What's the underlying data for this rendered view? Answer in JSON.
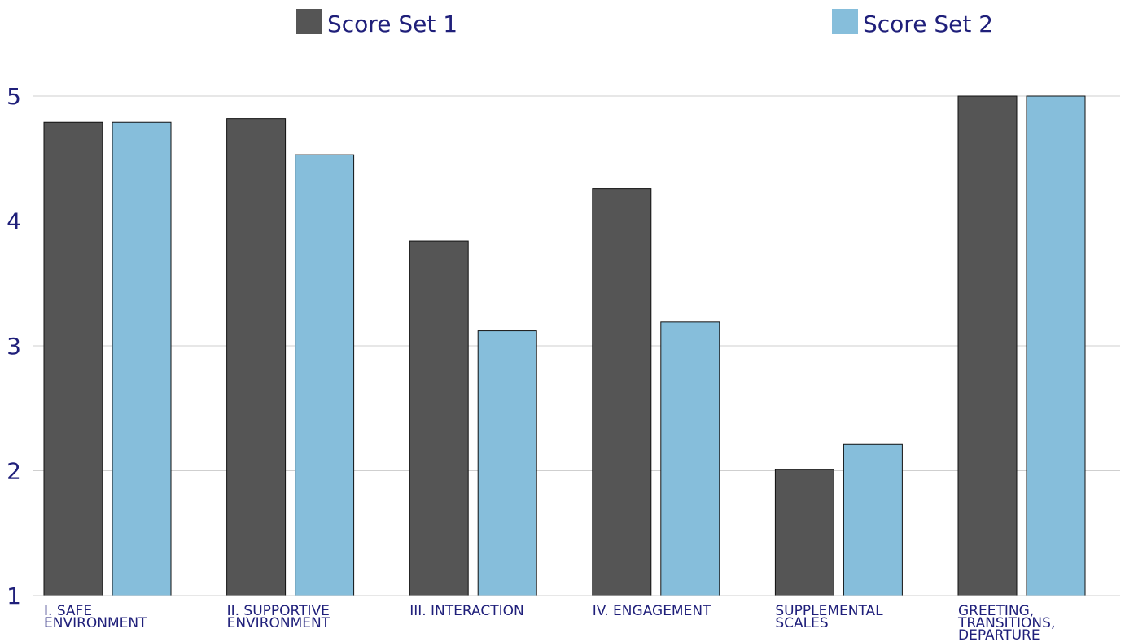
{
  "chart_data": {
    "type": "bar",
    "title": "",
    "xlabel": "",
    "ylabel": "",
    "ylim": [
      1,
      5
    ],
    "yticks": [
      1,
      2,
      3,
      4,
      5
    ],
    "grid": true,
    "legend_position": "top",
    "categories": [
      [
        "I. SAFE",
        "ENVIRONMENT"
      ],
      [
        "II. SUPPORTIVE",
        "ENVIRONMENT"
      ],
      [
        "III. INTERACTION"
      ],
      [
        "IV. ENGAGEMENT"
      ],
      [
        "SUPPLEMENTAL",
        "SCALES"
      ],
      [
        "GREETING,",
        "TRANSITIONS,",
        "DEPARTURE"
      ]
    ],
    "series": [
      {
        "name": "Score Set 1",
        "color": "#555555",
        "values": [
          4.79,
          4.82,
          3.84,
          4.26,
          2.01,
          5.0
        ]
      },
      {
        "name": "Score Set 2",
        "color": "#86bedb",
        "values": [
          4.79,
          4.53,
          3.12,
          3.19,
          2.21,
          5.0
        ]
      }
    ]
  }
}
